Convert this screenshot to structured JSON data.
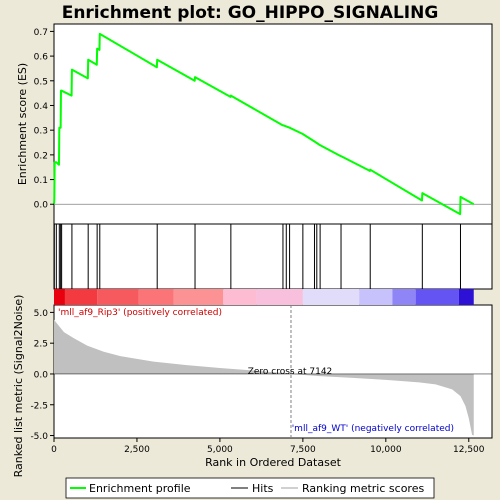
{
  "chart_data": {
    "type": "line",
    "title": "Enrichment plot: GO_HIPPO_SIGNALING",
    "xlabel": "Rank in Ordered Dataset",
    "es_ylabel": "Enrichment score (ES)",
    "metric_ylabel": "Ranked list metric (Signal2Noise)",
    "xlim": [
      0,
      13200
    ],
    "x_ticks": [
      0,
      2500,
      5000,
      7500,
      10000,
      12500
    ],
    "x_tick_labels": [
      "0",
      "2,500",
      "5,000",
      "7,500",
      "10,000",
      "12,500"
    ],
    "es_ylim": [
      -0.08,
      0.73
    ],
    "es_ticks": [
      0.0,
      0.1,
      0.2,
      0.3,
      0.4,
      0.5,
      0.6,
      0.7
    ],
    "es_tick_labels": [
      "0.0",
      "0.1",
      "0.2",
      "0.3",
      "0.4",
      "0.5",
      "0.6",
      "0.7"
    ],
    "metric_ylim": [
      -5.2,
      5.6
    ],
    "metric_ticks": [
      -5.0,
      -2.5,
      0.0,
      2.5,
      5.0
    ],
    "metric_tick_labels": [
      "-5.0",
      "-2.5",
      "0.0",
      "2.5",
      "5.0"
    ],
    "hits": [
      10,
      70,
      160,
      200,
      230,
      540,
      1030,
      1300,
      1380,
      3110,
      4250,
      5330,
      6900,
      7000,
      7100,
      7500,
      7850,
      7920,
      8020,
      8650,
      9530,
      11100,
      12250
    ],
    "es_curve": [
      [
        0,
        0.0
      ],
      [
        10,
        0.02
      ],
      [
        20,
        0.17
      ],
      [
        70,
        0.17
      ],
      [
        150,
        0.16
      ],
      [
        160,
        0.31
      ],
      [
        200,
        0.31
      ],
      [
        210,
        0.46
      ],
      [
        230,
        0.46
      ],
      [
        530,
        0.44
      ],
      [
        540,
        0.545
      ],
      [
        1020,
        0.51
      ],
      [
        1030,
        0.585
      ],
      [
        1290,
        0.565
      ],
      [
        1300,
        0.63
      ],
      [
        1370,
        0.625
      ],
      [
        1380,
        0.69
      ],
      [
        3100,
        0.555
      ],
      [
        3110,
        0.585
      ],
      [
        4240,
        0.5
      ],
      [
        4250,
        0.515
      ],
      [
        5320,
        0.435
      ],
      [
        5330,
        0.44
      ],
      [
        6890,
        0.32
      ],
      [
        6900,
        0.32
      ],
      [
        7100,
        0.31
      ],
      [
        7490,
        0.285
      ],
      [
        7840,
        0.255
      ],
      [
        8010,
        0.24
      ],
      [
        8640,
        0.195
      ],
      [
        8650,
        0.195
      ],
      [
        9520,
        0.135
      ],
      [
        9530,
        0.14
      ],
      [
        11090,
        0.015
      ],
      [
        11100,
        0.045
      ],
      [
        12240,
        -0.04
      ],
      [
        12250,
        0.03
      ],
      [
        12650,
        0.0
      ]
    ],
    "metric_profile": [
      [
        0,
        4.4
      ],
      [
        120,
        4.0
      ],
      [
        300,
        3.4
      ],
      [
        600,
        2.9
      ],
      [
        1000,
        2.3
      ],
      [
        1500,
        1.8
      ],
      [
        2000,
        1.45
      ],
      [
        3000,
        1.0
      ],
      [
        4000,
        0.72
      ],
      [
        5000,
        0.48
      ],
      [
        6000,
        0.28
      ],
      [
        7000,
        0.06
      ],
      [
        7142,
        0.0
      ],
      [
        8000,
        -0.18
      ],
      [
        9000,
        -0.32
      ],
      [
        10000,
        -0.48
      ],
      [
        11000,
        -0.68
      ],
      [
        11500,
        -0.85
      ],
      [
        12000,
        -1.25
      ],
      [
        12250,
        -1.8
      ],
      [
        12400,
        -2.6
      ],
      [
        12500,
        -3.6
      ],
      [
        12600,
        -4.95
      ],
      [
        12650,
        -5.0
      ]
    ],
    "zero_cross": 7142,
    "zero_cross_label": "Zero cross at 7142",
    "pos_label": "'mll_af9_Rip3' (positively correlated)",
    "neg_label": "'mll_af9_WT' (negatively correlated)",
    "heat_segments": [
      {
        "start": 0,
        "end": 330,
        "color": "#e8000e"
      },
      {
        "start": 330,
        "end": 1300,
        "color": "#f23a40"
      },
      {
        "start": 1300,
        "end": 2550,
        "color": "#f75a5e"
      },
      {
        "start": 2550,
        "end": 3600,
        "color": "#fb7478"
      },
      {
        "start": 3600,
        "end": 5100,
        "color": "#fc9294"
      },
      {
        "start": 5100,
        "end": 6100,
        "color": "#fdbcd2"
      },
      {
        "start": 6100,
        "end": 7500,
        "color": "#f9c0de"
      },
      {
        "start": 7500,
        "end": 9200,
        "color": "#e0dcfa"
      },
      {
        "start": 9200,
        "end": 10200,
        "color": "#c7c2fb"
      },
      {
        "start": 10200,
        "end": 10900,
        "color": "#8f85f7"
      },
      {
        "start": 10900,
        "end": 12200,
        "color": "#6454f3"
      },
      {
        "start": 12200,
        "end": 12650,
        "color": "#2d12d6"
      }
    ],
    "legend": {
      "placement": "bottom",
      "entries": [
        "Enrichment profile",
        "Hits",
        "Ranking metric scores"
      ]
    },
    "colors": {
      "es_line": "#00ff00",
      "hits": "#000000",
      "metric_fill": "#c0c0c0",
      "pos_label": "#cc0000",
      "neg_label": "#0000cc",
      "background": "#ece9d8",
      "plot_bg": "#ffffff",
      "zero_line": "#808080"
    }
  }
}
